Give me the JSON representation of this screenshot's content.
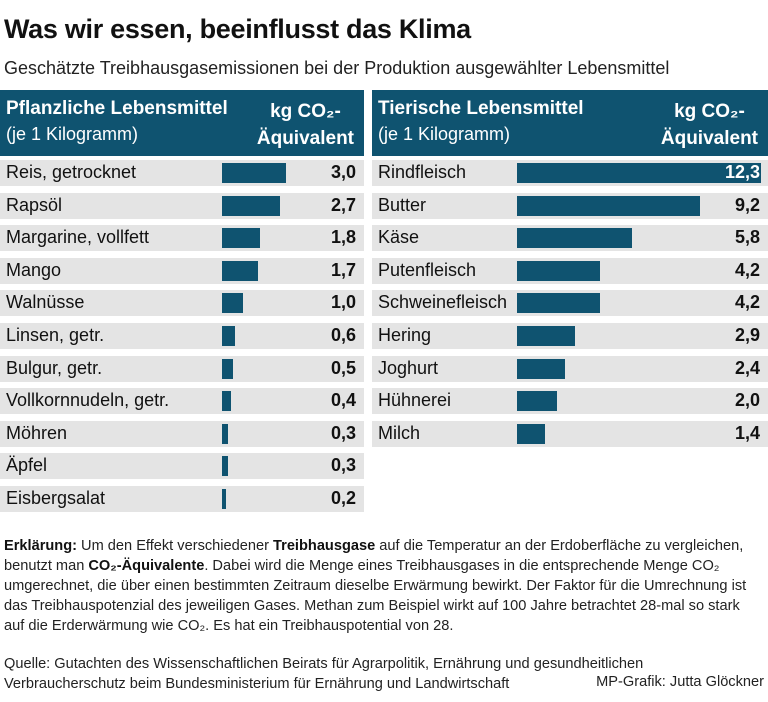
{
  "title": "Was wir essen, beeinflusst das Klima",
  "subtitle": "Geschätzte Treibhausgasemissionen bei der Produktion ausgewählter Lebensmittel",
  "unit_line1": "kg CO₂-",
  "unit_line2": "Äquivalent",
  "chart_data": [
    {
      "type": "bar",
      "title": "Pflanzliche Lebensmittel",
      "subtitle": "(je 1 Kilogramm)",
      "categories": [
        "Reis, getrocknet",
        "Rapsöl",
        "Margarine, vollfett",
        "Mango",
        "Walnüsse",
        "Linsen, getr.",
        "Bulgur, getr.",
        "Vollkornnudeln, getr.",
        "Möhren",
        "Äpfel",
        "Eisbergsalat"
      ],
      "values": [
        3.0,
        2.7,
        1.8,
        1.7,
        1.0,
        0.6,
        0.5,
        0.4,
        0.3,
        0.3,
        0.2
      ],
      "value_labels": [
        "3,0",
        "2,7",
        "1,8",
        "1,7",
        "1,0",
        "0,6",
        "0,5",
        "0,4",
        "0,3",
        "0,3",
        "0,2"
      ],
      "xmax": 3.0,
      "bar_color": "#0f5370"
    },
    {
      "type": "bar",
      "title": "Tierische Lebensmittel",
      "subtitle": "(je 1 Kilogramm)",
      "categories": [
        "Rindfleisch",
        "Butter",
        "Käse",
        "Putenfleisch",
        "Schweinefleisch",
        "Hering",
        "Joghurt",
        "Hühnerei",
        "Milch"
      ],
      "values": [
        12.3,
        9.2,
        5.8,
        4.2,
        4.2,
        2.9,
        2.4,
        2.0,
        1.4
      ],
      "value_labels": [
        "12,3",
        "9,2",
        "5,8",
        "4,2",
        "4,2",
        "2,9",
        "2,4",
        "2,0",
        "1,4"
      ],
      "xmax": 12.3,
      "bar_color": "#0f5370"
    }
  ],
  "explanation": {
    "label": "Erklärung:",
    "t1": " Um den Effekt verschiedener ",
    "b1": "Treibhausgase",
    "t2": " auf die Temperatur an der Erdoberfläche zu vergleichen, benutzt man ",
    "b2": "CO₂-Äquivalente",
    "t3": ". Dabei wird die Menge eines Treibhausgases in die entsprechende Menge CO₂ umgerechnet, die über einen bestimmten Zeitraum dieselbe Erwärmung bewirkt. Der Faktor für die Umrechnung ist das Treibhauspotenzial des jeweiligen Gases. Methan zum Beispiel wirkt auf 100 Jahre betrachtet 28-mal so stark auf die Erderwärmung wie CO₂. Es hat ein Treibhauspotential von 28."
  },
  "source": "Quelle: Gutachten des Wissenschaftlichen Beirats für Agrarpolitik, Ernährung und gesundheitlichen Verbraucherschutz beim Bundesministerium für Ernährung und Landwirtschaft",
  "credit": "MP-Grafik: Jutta Glöckner"
}
